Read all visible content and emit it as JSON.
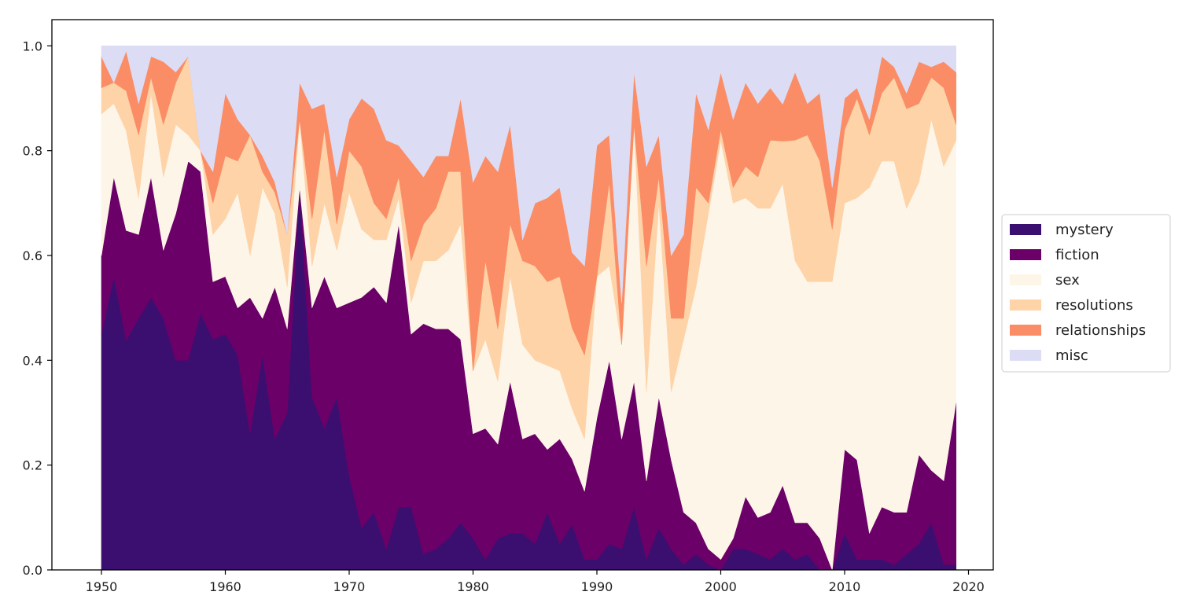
{
  "chart_data": {
    "type": "area",
    "stacked": true,
    "title": "",
    "xlabel": "",
    "ylabel": "",
    "xlim": [
      1946,
      2022
    ],
    "ylim": [
      0,
      1.05
    ],
    "grid": false,
    "legend_position": "center-right, outside plot",
    "x_ticks": [
      1950,
      1960,
      1970,
      1980,
      1990,
      2000,
      2010,
      2020
    ],
    "x_tick_labels": [
      "1950",
      "1960",
      "1970",
      "1980",
      "1990",
      "2000",
      "2010",
      "2020"
    ],
    "y_ticks": [
      0,
      0.2,
      0.4,
      0.6,
      0.8,
      1.0
    ],
    "y_tick_labels": [
      "0.0",
      "0.2",
      "0.4",
      "0.6",
      "0.8",
      "1.0"
    ],
    "x": [
      1950,
      1951,
      1952,
      1953,
      1954,
      1955,
      1956,
      1957,
      1958,
      1959,
      1960,
      1961,
      1962,
      1963,
      1964,
      1965,
      1966,
      1967,
      1968,
      1969,
      1970,
      1971,
      1972,
      1973,
      1974,
      1975,
      1976,
      1977,
      1978,
      1979,
      1980,
      1981,
      1982,
      1983,
      1984,
      1985,
      1986,
      1987,
      1988,
      1989,
      1990,
      1991,
      1992,
      1993,
      1994,
      1995,
      1996,
      1997,
      1998,
      1999,
      2000,
      2001,
      2002,
      2003,
      2004,
      2005,
      2006,
      2007,
      2008,
      2009,
      2010,
      2011,
      2012,
      2013,
      2014,
      2015,
      2016,
      2017,
      2018,
      2019
    ],
    "series": [
      {
        "name": "mystery",
        "color": "#3b0f70",
        "values": [
          0.45,
          0.56,
          0.46,
          0.48,
          0.52,
          0.48,
          0.4,
          0.4,
          0.49,
          0.44,
          0.45,
          0.41,
          0.26,
          0.41,
          0.25,
          0.3,
          0.73,
          0.33,
          0.27,
          0.33,
          0.18,
          0.08,
          0.11,
          0.04,
          0.12,
          0.12,
          0.03,
          0.04,
          0.06,
          0.09,
          0.06,
          0.02,
          0.06,
          0.07,
          0.07,
          0.05,
          0.11,
          0.05,
          0.09,
          0.02,
          0.02,
          0.05,
          0.04,
          0.12,
          0.02,
          0.08,
          0.04,
          0.01,
          0.03,
          0.01,
          0.0,
          0.04,
          0.04,
          0.03,
          0.02,
          0.04,
          0.02,
          0.03,
          0.0,
          0.0,
          0.07,
          0.02,
          0.02,
          0.02,
          0.01,
          0.03,
          0.05,
          0.09,
          0.01,
          0.01
        ]
      },
      {
        "name": "fiction",
        "color": "#6b0068",
        "values": [
          0.15,
          0.19,
          0.22,
          0.16,
          0.23,
          0.13,
          0.28,
          0.38,
          0.27,
          0.11,
          0.11,
          0.09,
          0.26,
          0.07,
          0.29,
          0.16,
          0.0,
          0.17,
          0.29,
          0.17,
          0.33,
          0.44,
          0.43,
          0.47,
          0.54,
          0.33,
          0.44,
          0.42,
          0.4,
          0.35,
          0.2,
          0.25,
          0.18,
          0.29,
          0.18,
          0.21,
          0.12,
          0.2,
          0.13,
          0.13,
          0.27,
          0.35,
          0.21,
          0.24,
          0.15,
          0.25,
          0.17,
          0.1,
          0.06,
          0.03,
          0.02,
          0.02,
          0.1,
          0.07,
          0.09,
          0.12,
          0.07,
          0.06,
          0.06,
          0.0,
          0.16,
          0.19,
          0.05,
          0.1,
          0.1,
          0.08,
          0.17,
          0.1,
          0.16,
          0.31
        ]
      },
      {
        "name": "sex",
        "color": "#fdf5e8",
        "values": [
          0.27,
          0.14,
          0.2,
          0.07,
          0.16,
          0.14,
          0.17,
          0.05,
          0.04,
          0.09,
          0.11,
          0.22,
          0.08,
          0.25,
          0.14,
          0.08,
          0.13,
          0.08,
          0.14,
          0.11,
          0.21,
          0.13,
          0.09,
          0.12,
          0.05,
          0.06,
          0.12,
          0.13,
          0.15,
          0.22,
          0.12,
          0.17,
          0.12,
          0.2,
          0.18,
          0.14,
          0.16,
          0.13,
          0.1,
          0.1,
          0.27,
          0.18,
          0.18,
          0.49,
          0.17,
          0.37,
          0.13,
          0.33,
          0.45,
          0.64,
          0.8,
          0.64,
          0.57,
          0.59,
          0.58,
          0.57,
          0.5,
          0.46,
          0.49,
          0.55,
          0.47,
          0.5,
          0.66,
          0.66,
          0.67,
          0.58,
          0.52,
          0.67,
          0.6,
          0.5
        ]
      },
      {
        "name": "resolutions",
        "color": "#fed3a8",
        "values": [
          0.05,
          0.04,
          0.08,
          0.12,
          0.03,
          0.1,
          0.08,
          0.15,
          0.0,
          0.06,
          0.12,
          0.06,
          0.23,
          0.03,
          0.04,
          0.1,
          0.0,
          0.09,
          0.14,
          0.05,
          0.08,
          0.12,
          0.07,
          0.04,
          0.04,
          0.08,
          0.07,
          0.1,
          0.15,
          0.1,
          0.0,
          0.15,
          0.1,
          0.1,
          0.16,
          0.18,
          0.16,
          0.18,
          0.16,
          0.16,
          0.0,
          0.16,
          0.0,
          0.0,
          0.24,
          0.05,
          0.14,
          0.04,
          0.19,
          0.02,
          0.02,
          0.03,
          0.06,
          0.06,
          0.13,
          0.08,
          0.23,
          0.28,
          0.23,
          0.1,
          0.14,
          0.19,
          0.1,
          0.13,
          0.16,
          0.19,
          0.15,
          0.08,
          0.15,
          0.03
        ]
      },
      {
        "name": "relationships",
        "color": "#fb8d66",
        "values": [
          0.06,
          0.0,
          0.08,
          0.06,
          0.04,
          0.12,
          0.02,
          0.0,
          0.0,
          0.06,
          0.12,
          0.08,
          0.0,
          0.03,
          0.02,
          0.0,
          0.07,
          0.21,
          0.05,
          0.09,
          0.06,
          0.13,
          0.18,
          0.15,
          0.06,
          0.19,
          0.09,
          0.1,
          0.03,
          0.14,
          0.36,
          0.2,
          0.3,
          0.19,
          0.04,
          0.12,
          0.16,
          0.17,
          0.15,
          0.17,
          0.25,
          0.09,
          0.08,
          0.1,
          0.19,
          0.08,
          0.12,
          0.16,
          0.18,
          0.14,
          0.11,
          0.13,
          0.16,
          0.14,
          0.1,
          0.07,
          0.13,
          0.06,
          0.13,
          0.08,
          0.06,
          0.02,
          0.03,
          0.07,
          0.02,
          0.03,
          0.08,
          0.02,
          0.05,
          0.1
        ]
      },
      {
        "name": "misc",
        "color": "#dcdcf5",
        "values": [
          0.02,
          0.07,
          0.01,
          0.11,
          0.02,
          0.03,
          0.05,
          0.02,
          0.2,
          0.24,
          0.09,
          0.14,
          0.17,
          0.21,
          0.26,
          0.36,
          0.07,
          0.12,
          0.11,
          0.25,
          0.14,
          0.1,
          0.12,
          0.18,
          0.19,
          0.22,
          0.25,
          0.21,
          0.21,
          0.1,
          0.26,
          0.21,
          0.24,
          0.15,
          0.37,
          0.3,
          0.29,
          0.27,
          0.41,
          0.42,
          0.19,
          0.17,
          0.49,
          0.05,
          0.23,
          0.17,
          0.4,
          0.36,
          0.09,
          0.16,
          0.05,
          0.14,
          0.07,
          0.11,
          0.08,
          0.11,
          0.05,
          0.11,
          0.09,
          0.27,
          0.1,
          0.08,
          0.14,
          0.02,
          0.04,
          0.09,
          0.03,
          0.04,
          0.03,
          0.05
        ]
      }
    ]
  }
}
